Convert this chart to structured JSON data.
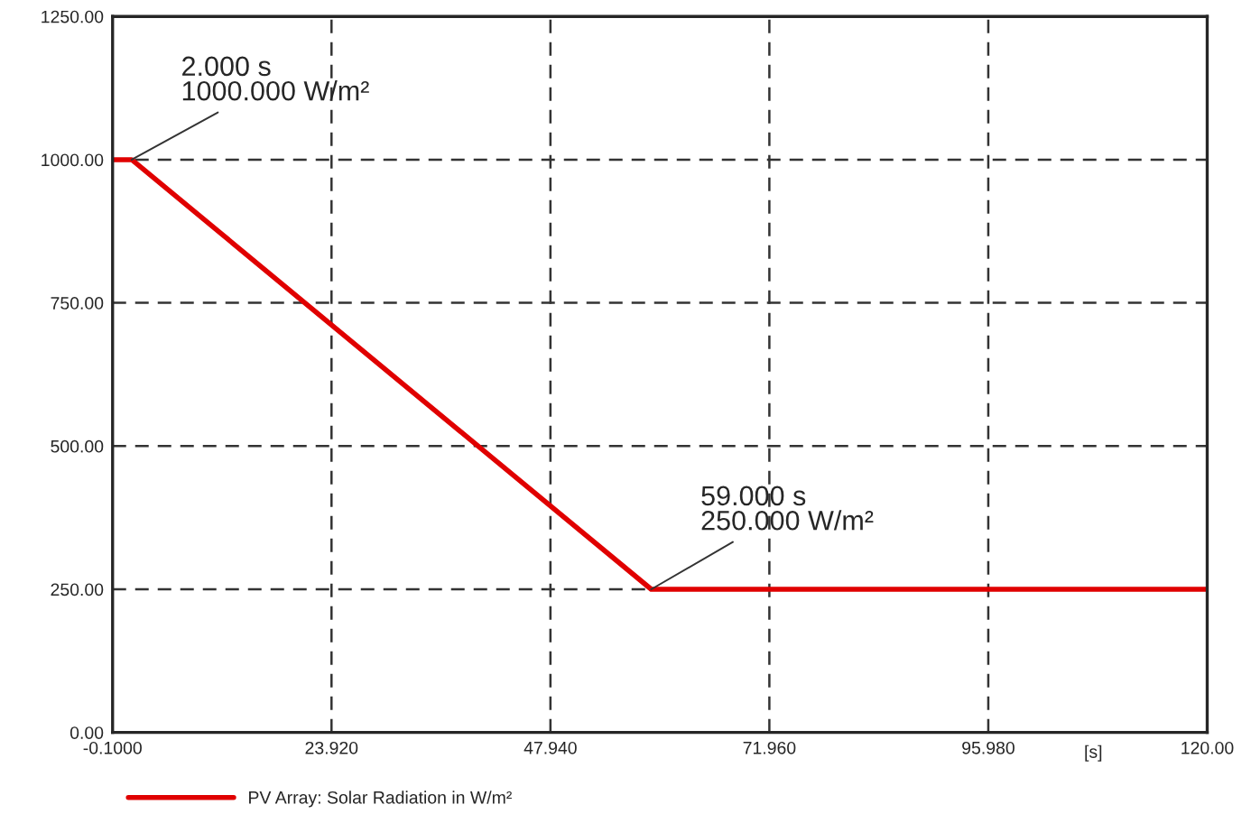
{
  "chart_data": {
    "type": "line",
    "xlabel": "[s]",
    "series": [
      {
        "name": "PV Array: Solar Radiation in W/m²",
        "color": "#e00000",
        "x": [
          -0.1,
          2,
          59,
          120
        ],
        "values": [
          1000,
          1000,
          250,
          250
        ]
      }
    ],
    "xlim": [
      -0.1,
      120
    ],
    "ylim": [
      0,
      1250
    ],
    "xticks": [
      {
        "value": -0.1,
        "label": "-0.1000"
      },
      {
        "value": 23.92,
        "label": "23.920"
      },
      {
        "value": 47.94,
        "label": "47.940"
      },
      {
        "value": 71.96,
        "label": "71.960"
      },
      {
        "value": 95.98,
        "label": "95.980"
      },
      {
        "value": 120,
        "label": "120.00"
      }
    ],
    "yticks": [
      {
        "value": 0,
        "label": "0.00"
      },
      {
        "value": 250,
        "label": "250.00"
      },
      {
        "value": 500,
        "label": "500.00"
      },
      {
        "value": 750,
        "label": "750.00"
      },
      {
        "value": 1000,
        "label": "1000.00"
      },
      {
        "value": 1250,
        "label": "1250.00"
      }
    ],
    "annotations": [
      {
        "text": "2.000 s\n1000.000 W/m²",
        "x": 2,
        "y": 1000
      },
      {
        "text": "59.000 s\n250.000 W/m²",
        "x": 59,
        "y": 250
      }
    ],
    "grid": true,
    "line_style": "solid",
    "legend": "bottom left"
  }
}
